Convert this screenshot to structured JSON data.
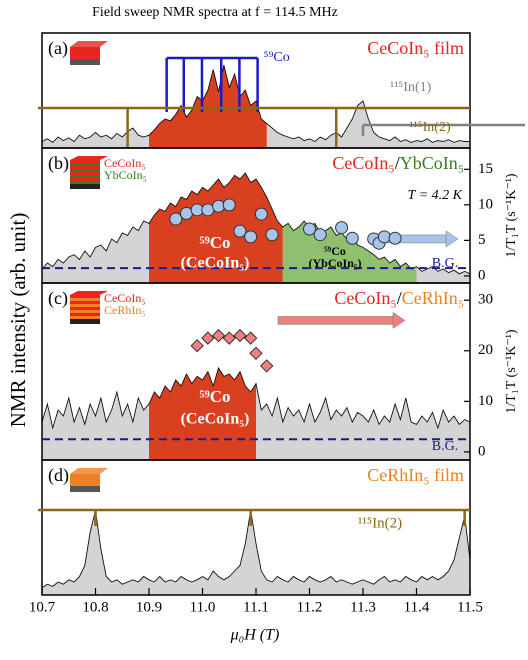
{
  "chart_data": [
    {
      "type": "area",
      "title": "Field sweep NMR spectra at f = 114.5 MHz",
      "ylabel": "NMR intensity (arb. unit)",
      "panel_label": "(a)",
      "label_parts": [
        {
          "text": "CeCoIn₅ film",
          "color": "#e8251f"
        }
      ],
      "x": [
        10.7,
        10.71,
        10.72,
        10.73,
        10.74,
        10.75,
        10.76,
        10.77,
        10.78,
        10.79,
        10.8,
        10.81,
        10.82,
        10.83,
        10.84,
        10.85,
        10.86,
        10.87,
        10.88,
        10.89,
        10.9,
        10.91,
        10.92,
        10.93,
        10.94,
        10.95,
        10.96,
        10.97,
        10.98,
        10.99,
        11,
        11.01,
        11.02,
        11.03,
        11.04,
        11.05,
        11.06,
        11.07,
        11.08,
        11.09,
        11.1,
        11.11,
        11.12,
        11.13,
        11.14,
        11.15,
        11.16,
        11.17,
        11.18,
        11.19,
        11.2,
        11.21,
        11.22,
        11.23,
        11.24,
        11.25,
        11.26,
        11.27,
        11.28,
        11.29,
        11.3,
        11.31,
        11.32,
        11.33,
        11.34,
        11.35,
        11.36,
        11.37,
        11.38,
        11.39,
        11.4,
        11.41,
        11.42,
        11.43,
        11.44,
        11.45,
        11.46,
        11.47,
        11.48,
        11.49,
        11.5
      ],
      "values": [
        0.05,
        0.08,
        0.04,
        0.1,
        0.06,
        0.09,
        0.05,
        0.12,
        0.08,
        0.1,
        0.15,
        0.1,
        0.12,
        0.08,
        0.14,
        0.1,
        0.16,
        0.2,
        0.12,
        0.1,
        0.12,
        0.18,
        0.25,
        0.3,
        0.28,
        0.35,
        0.45,
        0.32,
        0.4,
        0.55,
        0.5,
        0.62,
        0.85,
        0.6,
        0.9,
        0.65,
        0.8,
        0.55,
        0.62,
        0.45,
        0.5,
        0.3,
        0.25,
        0.2,
        0.15,
        0.12,
        0.1,
        0.08,
        0.1,
        0.06,
        0.08,
        0.05,
        0.1,
        0.07,
        0.12,
        0.15,
        0.1,
        0.2,
        0.3,
        0.45,
        0.5,
        0.3,
        0.15,
        0.1,
        0.08,
        0.06,
        0.1,
        0.05,
        0.07,
        0.04,
        0.06,
        0.05,
        0.08,
        0.04,
        0.06,
        0.05,
        0.07,
        0.04,
        0.06,
        0.05,
        0.05
      ],
      "color": "#d4d4d4",
      "highlights": [
        {
          "range": [
            10.9,
            11.12
          ],
          "color": "#d9401f"
        }
      ],
      "line_sets": [
        {
          "name": "⁵⁹Co",
          "color": "#1a1ac8",
          "positions": [
            10.933,
            10.965,
            10.999,
            11.035,
            11.069,
            11.103
          ]
        },
        {
          "name": "¹¹⁵In(1)",
          "color": "#808080",
          "positions": [
            11.3
          ]
        },
        {
          "name": "¹¹⁵In(2)",
          "color": "#8b6914",
          "positions": [
            10.86,
            11.25
          ]
        }
      ]
    },
    {
      "type": "area",
      "panel_label": "(b)",
      "label_parts": [
        {
          "text": "CeCoIn₅",
          "color": "#e8251f"
        },
        {
          "text": "/",
          "color": "#000000"
        },
        {
          "text": "YbCoIn₅",
          "color": "#3a7d1e"
        }
      ],
      "layers": [
        {
          "text": "CeCoIn₅",
          "color": "#e8251f"
        },
        {
          "text": "YbCoIn₅",
          "color": "#3a7d1e"
        }
      ],
      "annotations": [
        "T = 4.2 K",
        "⁵⁹Co",
        "(CeCoIn₅)",
        "⁵⁹Co",
        "(YbCoIn₅)",
        "B.G."
      ],
      "x": [
        10.7,
        10.71,
        10.72,
        10.73,
        10.74,
        10.75,
        10.76,
        10.77,
        10.78,
        10.79,
        10.8,
        10.81,
        10.82,
        10.83,
        10.84,
        10.85,
        10.86,
        10.87,
        10.88,
        10.89,
        10.9,
        10.91,
        10.92,
        10.93,
        10.94,
        10.95,
        10.96,
        10.97,
        10.98,
        10.99,
        11,
        11.01,
        11.02,
        11.03,
        11.04,
        11.05,
        11.06,
        11.07,
        11.08,
        11.09,
        11.1,
        11.11,
        11.12,
        11.13,
        11.14,
        11.15,
        11.16,
        11.17,
        11.18,
        11.19,
        11.2,
        11.21,
        11.22,
        11.23,
        11.24,
        11.25,
        11.26,
        11.27,
        11.28,
        11.29,
        11.3,
        11.31,
        11.32,
        11.33,
        11.34,
        11.35,
        11.36,
        11.37,
        11.38,
        11.39,
        11.4,
        11.41,
        11.42,
        11.43,
        11.44,
        11.45,
        11.46,
        11.47,
        11.48,
        11.49,
        11.5
      ],
      "values": [
        0.1,
        0.15,
        0.12,
        0.18,
        0.15,
        0.2,
        0.22,
        0.18,
        0.25,
        0.2,
        0.28,
        0.3,
        0.25,
        0.35,
        0.32,
        0.4,
        0.38,
        0.45,
        0.42,
        0.5,
        0.48,
        0.55,
        0.6,
        0.58,
        0.65,
        0.62,
        0.7,
        0.68,
        0.75,
        0.72,
        0.78,
        0.75,
        0.8,
        0.85,
        0.78,
        0.82,
        0.88,
        0.85,
        0.9,
        0.82,
        0.85,
        0.78,
        0.7,
        0.6,
        0.5,
        0.45,
        0.48,
        0.42,
        0.45,
        0.5,
        0.45,
        0.48,
        0.4,
        0.42,
        0.45,
        0.38,
        0.4,
        0.35,
        0.38,
        0.3,
        0.28,
        0.25,
        0.22,
        0.18,
        0.2,
        0.15,
        0.18,
        0.12,
        0.15,
        0.1,
        0.12,
        0.08,
        0.1,
        0.12,
        0.08,
        0.1,
        0.07,
        0.09,
        0.06,
        0.08,
        0.06
      ],
      "color": "#d4d4d4",
      "highlights": [
        {
          "range": [
            10.9,
            11.15
          ],
          "color": "#d9401f"
        },
        {
          "range": [
            11.15,
            11.4
          ],
          "color": "#8fbf6f"
        }
      ],
      "scatter": {
        "x": [
          10.95,
          10.97,
          10.99,
          11.01,
          11.03,
          11.05,
          11.07,
          11.09,
          11.11,
          11.13,
          11.2,
          11.22,
          11.26,
          11.28,
          11.32,
          11.33,
          11.34,
          11.36
        ],
        "values": [
          8,
          8.8,
          9.3,
          9.3,
          9.8,
          10,
          6.3,
          5.5,
          8.7,
          5.8,
          6.6,
          5.8,
          6.8,
          5.3,
          5.2,
          4.6,
          5.5,
          5.3
        ],
        "color": "#a8c4ea",
        "marker": "circle",
        "axis": "y2"
      },
      "bg": 1.1,
      "y2lim": [
        -1,
        18
      ],
      "y2ticks": [
        0,
        5,
        10,
        15
      ],
      "y2label": "1/T₁T (s⁻¹K⁻¹)"
    },
    {
      "type": "area",
      "panel_label": "(c)",
      "label_parts": [
        {
          "text": "CeCoIn₅",
          "color": "#e8251f"
        },
        {
          "text": "/",
          "color": "#000000"
        },
        {
          "text": "CeRhIn₅",
          "color": "#f08020"
        }
      ],
      "layers": [
        {
          "text": "CeCoIn₅",
          "color": "#e8251f"
        },
        {
          "text": "CeRhIn₅",
          "color": "#f08020"
        }
      ],
      "annotations": [
        "⁵⁹Co",
        "(CeCoIn₅)",
        "B.G."
      ],
      "x": [
        10.7,
        10.71,
        10.72,
        10.73,
        10.74,
        10.75,
        10.76,
        10.77,
        10.78,
        10.79,
        10.8,
        10.81,
        10.82,
        10.83,
        10.84,
        10.85,
        10.86,
        10.87,
        10.88,
        10.89,
        10.9,
        10.91,
        10.92,
        10.93,
        10.94,
        10.95,
        10.96,
        10.97,
        10.98,
        10.99,
        11,
        11.01,
        11.02,
        11.03,
        11.04,
        11.05,
        11.06,
        11.07,
        11.08,
        11.09,
        11.1,
        11.11,
        11.12,
        11.13,
        11.14,
        11.15,
        11.16,
        11.17,
        11.18,
        11.19,
        11.2,
        11.21,
        11.22,
        11.23,
        11.24,
        11.25,
        11.26,
        11.27,
        11.28,
        11.29,
        11.3,
        11.31,
        11.32,
        11.33,
        11.34,
        11.35,
        11.36,
        11.37,
        11.38,
        11.39,
        11.4,
        11.41,
        11.42,
        11.43,
        11.44,
        11.45,
        11.46,
        11.47,
        11.48,
        11.49,
        11.5
      ],
      "values": [
        0.3,
        0.45,
        0.25,
        0.4,
        0.35,
        0.5,
        0.3,
        0.42,
        0.28,
        0.45,
        0.35,
        0.5,
        0.3,
        0.4,
        0.55,
        0.35,
        0.45,
        0.3,
        0.5,
        0.4,
        0.45,
        0.55,
        0.5,
        0.6,
        0.55,
        0.65,
        0.6,
        0.7,
        0.62,
        0.68,
        0.65,
        0.72,
        0.6,
        0.75,
        0.68,
        0.7,
        0.65,
        0.72,
        0.6,
        0.55,
        0.62,
        0.4,
        0.45,
        0.35,
        0.5,
        0.3,
        0.42,
        0.35,
        0.4,
        0.3,
        0.45,
        0.3,
        0.38,
        0.5,
        0.32,
        0.4,
        0.35,
        0.42,
        0.3,
        0.38,
        0.35,
        0.3,
        0.4,
        0.28,
        0.35,
        0.3,
        0.45,
        0.32,
        0.5,
        0.3,
        0.28,
        0.35,
        0.3,
        0.38,
        0.25,
        0.4,
        0.3,
        0.35,
        0.28,
        0.32,
        0.3
      ],
      "color": "#d4d4d4",
      "highlights": [
        {
          "range": [
            10.9,
            11.1
          ],
          "color": "#d9401f"
        }
      ],
      "scatter": {
        "x": [
          10.99,
          11.01,
          11.03,
          11.05,
          11.07,
          11.09,
          11.1,
          11.12
        ],
        "values": [
          21,
          22.5,
          23,
          22.5,
          23,
          22.5,
          19.5,
          17
        ],
        "color": "#f08080",
        "marker": "diamond",
        "axis": "y2"
      },
      "bg": 2.5,
      "y2lim": [
        -1.6,
        33.4
      ],
      "y2ticks": [
        0,
        10,
        20,
        30
      ],
      "y2label": "1/T₁T (s⁻¹K⁻¹)"
    },
    {
      "type": "area",
      "panel_label": "(d)",
      "label_parts": [
        {
          "text": "CeRhIn₅ film",
          "color": "#f08020"
        }
      ],
      "x": [
        10.7,
        10.71,
        10.72,
        10.73,
        10.74,
        10.75,
        10.76,
        10.77,
        10.78,
        10.79,
        10.8,
        10.81,
        10.82,
        10.83,
        10.84,
        10.85,
        10.86,
        10.87,
        10.88,
        10.89,
        10.9,
        10.91,
        10.92,
        10.93,
        10.94,
        10.95,
        10.96,
        10.97,
        10.98,
        10.99,
        11,
        11.01,
        11.02,
        11.03,
        11.04,
        11.05,
        11.06,
        11.07,
        11.08,
        11.09,
        11.1,
        11.11,
        11.12,
        11.13,
        11.14,
        11.15,
        11.16,
        11.17,
        11.18,
        11.19,
        11.2,
        11.21,
        11.22,
        11.23,
        11.24,
        11.25,
        11.26,
        11.27,
        11.28,
        11.29,
        11.3,
        11.31,
        11.32,
        11.33,
        11.34,
        11.35,
        11.36,
        11.37,
        11.38,
        11.39,
        11.4,
        11.41,
        11.42,
        11.43,
        11.44,
        11.45,
        11.46,
        11.47,
        11.48,
        11.49,
        11.5
      ],
      "values": [
        0.05,
        0.08,
        0.06,
        0.1,
        0.08,
        0.12,
        0.1,
        0.15,
        0.25,
        0.55,
        0.75,
        0.4,
        0.15,
        0.1,
        0.12,
        0.08,
        0.1,
        0.12,
        0.1,
        0.15,
        0.12,
        0.1,
        0.15,
        0.1,
        0.12,
        0.1,
        0.15,
        0.12,
        0.1,
        0.12,
        0.15,
        0.12,
        0.2,
        0.15,
        0.12,
        0.15,
        0.2,
        0.25,
        0.45,
        0.75,
        0.45,
        0.2,
        0.12,
        0.1,
        0.15,
        0.12,
        0.1,
        0.15,
        0.12,
        0.1,
        0.15,
        0.12,
        0.1,
        0.12,
        0.15,
        0.1,
        0.12,
        0.1,
        0.08,
        0.1,
        0.12,
        0.1,
        0.08,
        0.12,
        0.15,
        0.1,
        0.12,
        0.1,
        0.15,
        0.12,
        0.1,
        0.15,
        0.12,
        0.15,
        0.12,
        0.15,
        0.2,
        0.3,
        0.5,
        0.7,
        0.3
      ],
      "color": "#d4d4d4",
      "line_sets": [
        {
          "name": "¹¹⁵In(2)",
          "color": "#8b6914",
          "positions": [
            10.8,
            11.09,
            11.49
          ]
        }
      ],
      "xlim": [
        10.7,
        11.5
      ],
      "xticks": [
        10.7,
        10.8,
        10.9,
        {
          "value": 11,
          "label": "11.0"
        },
        11.1,
        11.2,
        11.3,
        11.4,
        11.5
      ],
      "xlabel": "μ₀H (T)"
    }
  ]
}
